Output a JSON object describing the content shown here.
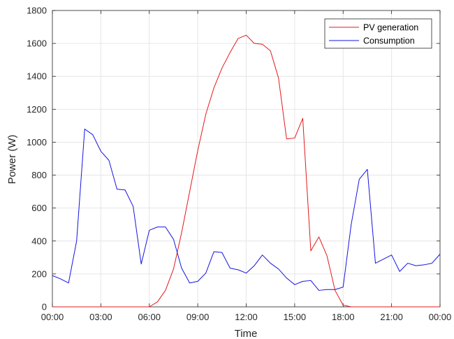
{
  "chart_data": {
    "type": "line",
    "xlabel": "Time",
    "ylabel": "Power (W)",
    "xlim": [
      0,
      24
    ],
    "ylim": [
      0,
      1800
    ],
    "grid": true,
    "legend_position": "top-right",
    "x_ticks": [
      {
        "value": 0,
        "label": "00:00"
      },
      {
        "value": 3,
        "label": "03:00"
      },
      {
        "value": 6,
        "label": "06:00"
      },
      {
        "value": 9,
        "label": "09:00"
      },
      {
        "value": 12,
        "label": "12:00"
      },
      {
        "value": 15,
        "label": "15:00"
      },
      {
        "value": 18,
        "label": "18:00"
      },
      {
        "value": 21,
        "label": "21:00"
      },
      {
        "value": 24,
        "label": "00:00"
      }
    ],
    "y_ticks": [
      0,
      200,
      400,
      600,
      800,
      1000,
      1200,
      1400,
      1600,
      1800
    ],
    "series": [
      {
        "name": "PV generation",
        "color": "#e3191c",
        "x": [
          0,
          0.5,
          1,
          1.5,
          2,
          2.5,
          3,
          3.5,
          4,
          4.5,
          5,
          5.5,
          6,
          6.5,
          7,
          7.5,
          8,
          8.5,
          9,
          9.5,
          10,
          10.5,
          11,
          11.5,
          12,
          12.5,
          13,
          13.5,
          14,
          14.5,
          15,
          15.5,
          16,
          16.5,
          17,
          17.5,
          18,
          18.5,
          19,
          19.5,
          20,
          20.5,
          21,
          21.5,
          22,
          22.5,
          23,
          23.5,
          24
        ],
        "y": [
          0,
          0,
          0,
          0,
          0,
          0,
          0,
          0,
          0,
          0,
          0,
          0,
          0,
          30,
          100,
          230,
          450,
          700,
          950,
          1170,
          1330,
          1450,
          1545,
          1630,
          1650,
          1600,
          1595,
          1555,
          1390,
          1020,
          1025,
          1145,
          340,
          425,
          310,
          100,
          10,
          0,
          0,
          0,
          0,
          0,
          0,
          0,
          0,
          0,
          0,
          0,
          0
        ]
      },
      {
        "name": "Consumption",
        "color": "#1414e0",
        "x": [
          0,
          0.5,
          1,
          1.5,
          2,
          2.5,
          3,
          3.5,
          4,
          4.5,
          5,
          5.5,
          6,
          6.5,
          7,
          7.5,
          8,
          8.5,
          9,
          9.5,
          10,
          10.5,
          11,
          11.5,
          12,
          12.5,
          13,
          13.5,
          14,
          14.5,
          15,
          15.5,
          16,
          16.5,
          17,
          17.5,
          18,
          18.5,
          19,
          19.5,
          20,
          20.5,
          21,
          21.5,
          22,
          22.5,
          23,
          23.5,
          24
        ],
        "y": [
          190,
          170,
          145,
          400,
          1080,
          1045,
          945,
          890,
          715,
          710,
          610,
          260,
          465,
          485,
          485,
          410,
          235,
          145,
          155,
          205,
          335,
          330,
          235,
          225,
          205,
          250,
          315,
          265,
          230,
          175,
          135,
          155,
          160,
          100,
          105,
          105,
          120,
          500,
          775,
          835,
          265,
          290,
          315,
          215,
          265,
          250,
          255,
          265,
          320
        ]
      }
    ]
  }
}
